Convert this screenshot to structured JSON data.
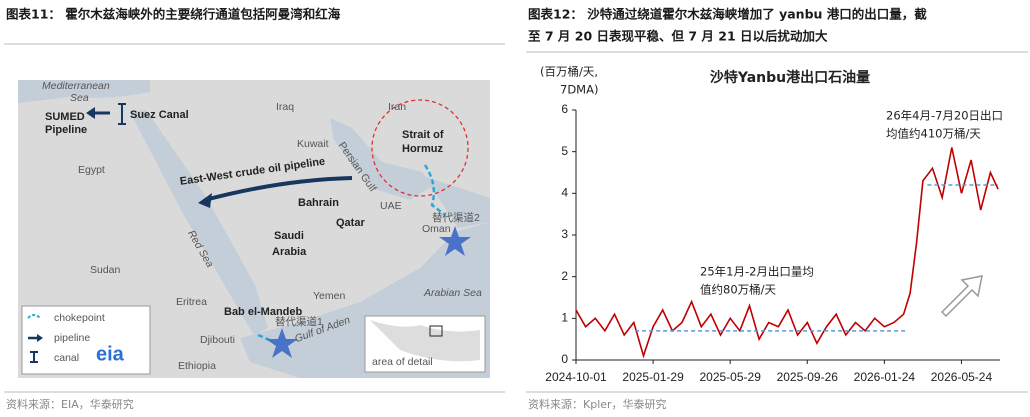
{
  "figure11": {
    "title": "图表11： 霍尔木兹海峡外的主要绕行通道包括阿曼湾和红海",
    "source": "资料来源：EIA，华泰研究",
    "labels": [
      "Mediterranean",
      "Sea",
      "SUMED",
      "Pipeline",
      "Suez Canal",
      "Iraq",
      "Iran",
      "Kuwait",
      "Persian Gulf",
      "Strait of",
      "Hormuz",
      "Egypt",
      "East-West crude oil pipeline",
      "Bahrain",
      "Qatar",
      "UAE",
      "替代渠道2",
      "Oman",
      "Red Sea",
      "Saudi",
      "Arabia",
      "Sudan",
      "Yemen",
      "Eritrea",
      "Arabian Sea",
      "Bab el-Mandeb",
      "替代渠道1",
      "Gulf of Aden",
      "Djibouti",
      "Ethiopia"
    ],
    "legend": [
      "chokepoint",
      "pipeline",
      "canal"
    ],
    "logo": "eia",
    "inset": "area of detail"
  },
  "figure12": {
    "title": [
      "图表12： 沙特通过绕道霍尔木兹海峡增加了 yanbu 港口的出口量，截",
      "至 7 月 20 日表现平稳、但 7 月 21 日以后扰动加大"
    ],
    "source": "资料来源：Kpler，华泰研究"
  },
  "chart_data": {
    "type": "line",
    "title": "沙特Yanbu港出口石油量",
    "ylabel": [
      "(百万桶/天,",
      "7DMA)"
    ],
    "x": [
      "2024-10-01",
      "2024-10-16",
      "2024-10-31",
      "2024-11-15",
      "2024-11-30",
      "2024-12-15",
      "2024-12-30",
      "2025-01-14",
      "2025-01-29",
      "2025-02-13",
      "2025-02-28",
      "2025-03-15",
      "2025-03-30",
      "2025-04-14",
      "2025-04-29",
      "2025-05-14",
      "2025-05-29",
      "2025-06-13",
      "2025-06-28",
      "2025-07-13",
      "2025-07-28",
      "2025-08-12",
      "2025-08-27",
      "2025-09-11",
      "2025-09-26",
      "2025-10-11",
      "2025-10-26",
      "2025-11-10",
      "2025-11-25",
      "2025-12-10",
      "2025-12-25",
      "2026-01-09",
      "2026-01-24",
      "2026-02-08",
      "2026-02-23",
      "2026-03-05",
      "2026-03-15",
      "2026-03-25",
      "2026-04-09",
      "2026-04-24",
      "2026-05-09",
      "2026-05-24",
      "2026-06-08",
      "2026-06-23",
      "2026-07-08",
      "2026-07-20"
    ],
    "series": [
      {
        "color": "#c00000",
        "values": [
          1.2,
          0.8,
          1.0,
          0.7,
          1.1,
          0.6,
          0.9,
          0.1,
          0.8,
          1.2,
          0.7,
          0.9,
          1.4,
          0.8,
          1.1,
          0.6,
          1.0,
          0.7,
          1.3,
          0.5,
          0.9,
          0.8,
          1.2,
          0.6,
          0.9,
          0.4,
          0.8,
          1.1,
          0.6,
          0.9,
          0.7,
          1.0,
          0.8,
          0.9,
          1.1,
          1.6,
          2.8,
          4.3,
          4.6,
          3.9,
          5.1,
          4.0,
          4.8,
          3.6,
          4.5,
          4.1
        ]
      }
    ],
    "reference_lines": [
      {
        "color": "#5b9bd5",
        "value": 0.7,
        "x": [
          "2025-01-01",
          "2026-02-28"
        ]
      },
      {
        "color": "#5b9bd5",
        "value": 4.2,
        "x": [
          "2026-04-01",
          "2026-07-20"
        ]
      }
    ],
    "annotations": [
      "26年4月-7月20日出口",
      "均值约410万桶/天",
      "25年1月-2月出口量均",
      "值约80万桶/天"
    ],
    "xlim": [
      "2024-10-01",
      "2026-07-23"
    ],
    "xticks": [
      "2024-10-01",
      "2025-01-29",
      "2025-05-29",
      "2025-09-26",
      "2026-01-24",
      "2026-05-24"
    ],
    "ylim": [
      0,
      6
    ],
    "yticks": [
      0,
      1,
      2,
      3,
      4,
      5,
      6
    ],
    "grid": false
  }
}
